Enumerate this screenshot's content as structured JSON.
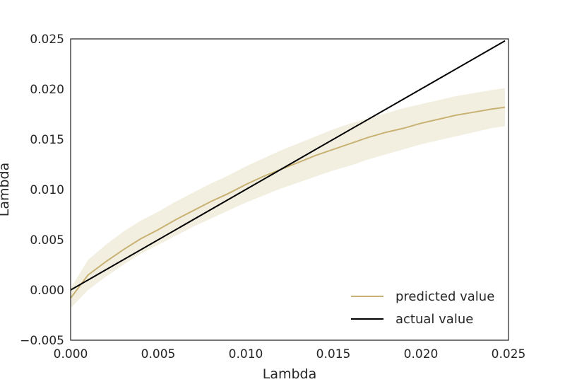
{
  "chart_data": {
    "type": "line",
    "title": "",
    "xlabel": "Lambda",
    "ylabel": "Lambda",
    "xlim": [
      0.0,
      0.025
    ],
    "ylim": [
      -0.005,
      0.025
    ],
    "x_ticks": [
      "0.000",
      "0.005",
      "0.010",
      "0.015",
      "0.020",
      "0.025"
    ],
    "y_ticks": [
      "−0.005",
      "0.000",
      "0.005",
      "0.010",
      "0.015",
      "0.020",
      "0.025"
    ],
    "grid": false,
    "legend": "bottom-right",
    "series": [
      {
        "name": "predicted value",
        "color": "#c8b273",
        "band_color": "#f3efe0",
        "x": [
          0.0,
          0.001,
          0.002,
          0.003,
          0.004,
          0.005,
          0.006,
          0.007,
          0.008,
          0.009,
          0.01,
          0.011,
          0.012,
          0.013,
          0.014,
          0.015,
          0.016,
          0.017,
          0.018,
          0.019,
          0.02,
          0.021,
          0.022,
          0.023,
          0.024,
          0.0248
        ],
        "y": [
          -0.0008,
          0.0015,
          0.0028,
          0.004,
          0.0051,
          0.006,
          0.007,
          0.0079,
          0.0088,
          0.0096,
          0.0105,
          0.0113,
          0.012,
          0.0127,
          0.0134,
          0.014,
          0.0146,
          0.0152,
          0.0157,
          0.0161,
          0.0166,
          0.017,
          0.0174,
          0.0177,
          0.018,
          0.0182
        ],
        "lower": [
          -0.0018,
          0.0,
          0.0013,
          0.0025,
          0.0036,
          0.0045,
          0.0054,
          0.0063,
          0.0071,
          0.0079,
          0.0087,
          0.0094,
          0.0101,
          0.0107,
          0.0113,
          0.0119,
          0.0124,
          0.013,
          0.0135,
          0.014,
          0.0145,
          0.0149,
          0.0153,
          0.0157,
          0.0161,
          0.0163
        ],
        "upper": [
          0.0002,
          0.003,
          0.0045,
          0.0058,
          0.0069,
          0.0078,
          0.0088,
          0.0097,
          0.0106,
          0.0114,
          0.0123,
          0.0131,
          0.0139,
          0.0146,
          0.0153,
          0.016,
          0.0166,
          0.0171,
          0.0176,
          0.0181,
          0.0185,
          0.0189,
          0.0193,
          0.0196,
          0.0199,
          0.0201
        ]
      },
      {
        "name": "actual value",
        "color": "#000000",
        "x": [
          0.0,
          0.0248
        ],
        "y": [
          0.0,
          0.0248
        ]
      }
    ]
  }
}
